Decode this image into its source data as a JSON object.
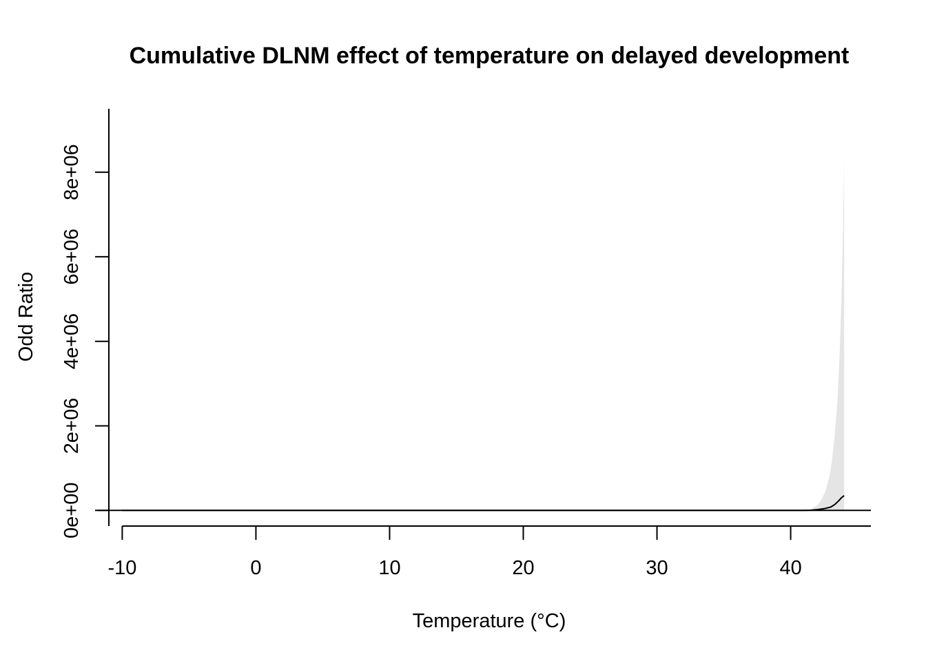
{
  "chart_data": {
    "type": "area",
    "title": "Cumulative DLNM effect of temperature on delayed development",
    "xlabel": "Temperature (°C)",
    "ylabel": "Odd Ratio",
    "xlim": [
      -11,
      46
    ],
    "ylim": [
      -370000,
      9500000
    ],
    "x_ticks": [
      -10,
      0,
      10,
      20,
      30,
      40
    ],
    "x_tick_labels": [
      "-10",
      "0",
      "10",
      "20",
      "30",
      "40"
    ],
    "y_ticks": [
      0,
      2000000,
      4000000,
      6000000,
      8000000
    ],
    "y_tick_labels": [
      "0e+00",
      "2e+06",
      "4e+06",
      "6e+06",
      "8e+06"
    ],
    "reference_line": 1,
    "grid": false,
    "legend": "none",
    "colors": {
      "estimate_line": "#000000",
      "confidence_band": "#e5e5e5",
      "reference_line": "#000000",
      "axis": "#000000"
    },
    "series": [
      {
        "role": "estimate",
        "x": [
          -10,
          0,
          10,
          20,
          30,
          40,
          41,
          41.5,
          42,
          42.5,
          43,
          43.3,
          43.6,
          43.8,
          44
        ],
        "y": [
          1,
          1,
          1,
          1,
          1,
          1,
          1,
          5000,
          20000,
          40000,
          80000,
          140000,
          230000,
          300000,
          350000
        ]
      },
      {
        "role": "upper",
        "x": [
          -10,
          0,
          10,
          20,
          30,
          40,
          41,
          41.5,
          42,
          42.3,
          42.6,
          42.9,
          43.1,
          43.3,
          43.5,
          43.65,
          43.8,
          43.9,
          44
        ],
        "y": [
          1,
          1,
          1,
          1,
          1,
          1,
          1,
          30000,
          120000,
          250000,
          450000,
          800000,
          1200000,
          1800000,
          2600000,
          3600000,
          5000000,
          6500000,
          8300000
        ]
      },
      {
        "role": "lower",
        "x": [
          -10,
          0,
          10,
          20,
          30,
          40,
          41,
          41.5,
          42,
          42.5,
          43,
          43.5,
          44
        ],
        "y": [
          1,
          1,
          1,
          1,
          1,
          1,
          1,
          1,
          1,
          1,
          1,
          1,
          1
        ]
      }
    ]
  }
}
